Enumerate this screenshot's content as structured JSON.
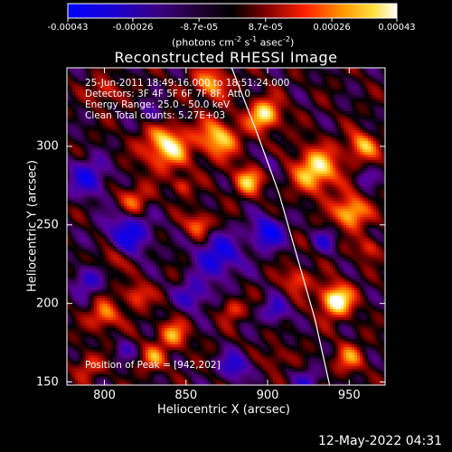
{
  "chart_data": {
    "type": "heatmap",
    "title": "Reconstructed RHESSI Image",
    "xlabel": "Heliocentric X (arcsec)",
    "ylabel": "Heliocentric Y (arcsec)",
    "xlim": [
      777,
      972
    ],
    "ylim": [
      148,
      350
    ],
    "xticks": [
      {
        "value": 800,
        "label": "800"
      },
      {
        "value": 850,
        "label": "850"
      },
      {
        "value": 900,
        "label": "900"
      },
      {
        "value": 950,
        "label": "950"
      }
    ],
    "yticks": [
      {
        "value": 150,
        "label": "150"
      },
      {
        "value": 200,
        "label": "200"
      },
      {
        "value": 250,
        "label": "250"
      },
      {
        "value": 300,
        "label": "300"
      }
    ],
    "colorbar": {
      "range": [
        -0.00043,
        0.00043
      ],
      "ticks": [
        {
          "value": -0.00043,
          "label": "-0.00043"
        },
        {
          "value": -0.00026,
          "label": "-0.00026"
        },
        {
          "value": -8.7e-05,
          "label": "-8.7e-05"
        },
        {
          "value": 8.7e-05,
          "label": "8.7e-05"
        },
        {
          "value": 0.00026,
          "label": "0.00026"
        },
        {
          "value": 0.00043,
          "label": "0.00043"
        }
      ],
      "units_main": "(photons cm",
      "units_sup1": "-2",
      "units_mid1": " s",
      "units_sup2": "-1",
      "units_mid2": " asec",
      "units_sup3": "-2",
      "units_end": ")"
    },
    "annotations": {
      "time": "25-Jun-2011 18:49:16.000 to 18:51:24.000",
      "detectors": "Detectors: 3F 4F 5F 6F 7F 8F, Att 0",
      "energy": "Energy Range: 25.0 - 50.0 keV",
      "clean": "Clean    Total counts: 5.27E+03",
      "peak": "Position of Peak = [942,202]"
    },
    "peak": {
      "x": 942,
      "y": 202
    },
    "limb_arc": [
      [
        878,
        350
      ],
      [
        893,
        310
      ],
      [
        907,
        270
      ],
      [
        918,
        230
      ],
      [
        929,
        190
      ],
      [
        938,
        148
      ]
    ]
  },
  "footer": {
    "timestamp": "12-May-2022 04:31"
  }
}
